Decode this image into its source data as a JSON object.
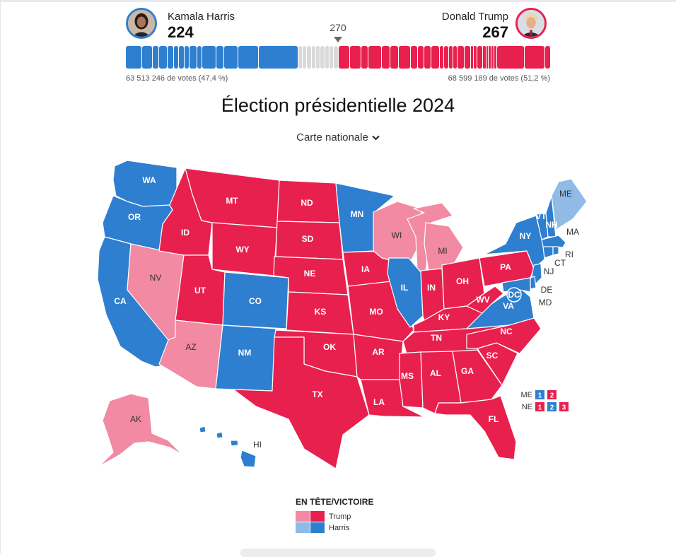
{
  "candidates": {
    "dem": {
      "name": "Kamala Harris",
      "electoral_votes": "224",
      "popular_vote": "63 513 246 de votes (47,4 %)"
    },
    "rep": {
      "name": "Donald Trump",
      "electoral_votes": "267",
      "popular_vote": "68 599 189 de votes (51,2 %)"
    }
  },
  "threshold": "270",
  "title": "Élection présidentielle 2024",
  "view_selector": {
    "label": "Carte nationale",
    "icon": "chevron-down-icon"
  },
  "colors": {
    "harris_won": "#2e7fd0",
    "harris_leading": "#8fbbe6",
    "trump_won": "#e8204e",
    "trump_leading": "#f18aa2",
    "uncalled": "#dadada"
  },
  "legend": {
    "title": "EN TÊTE/VICTOIRE",
    "trump_label": "Trump",
    "harris_label": "Harris"
  },
  "states": [
    {
      "abbr": "WA",
      "status": "harris_won"
    },
    {
      "abbr": "OR",
      "status": "harris_won"
    },
    {
      "abbr": "CA",
      "status": "harris_won"
    },
    {
      "abbr": "NV",
      "status": "trump_leading"
    },
    {
      "abbr": "ID",
      "status": "trump_won"
    },
    {
      "abbr": "MT",
      "status": "trump_won"
    },
    {
      "abbr": "WY",
      "status": "trump_won"
    },
    {
      "abbr": "UT",
      "status": "trump_won"
    },
    {
      "abbr": "AZ",
      "status": "trump_leading"
    },
    {
      "abbr": "CO",
      "status": "harris_won"
    },
    {
      "abbr": "NM",
      "status": "harris_won"
    },
    {
      "abbr": "ND",
      "status": "trump_won"
    },
    {
      "abbr": "SD",
      "status": "trump_won"
    },
    {
      "abbr": "NE",
      "status": "trump_won"
    },
    {
      "abbr": "KS",
      "status": "trump_won"
    },
    {
      "abbr": "OK",
      "status": "trump_won"
    },
    {
      "abbr": "TX",
      "status": "trump_won"
    },
    {
      "abbr": "MN",
      "status": "harris_won"
    },
    {
      "abbr": "IA",
      "status": "trump_won"
    },
    {
      "abbr": "MO",
      "status": "trump_won"
    },
    {
      "abbr": "AR",
      "status": "trump_won"
    },
    {
      "abbr": "LA",
      "status": "trump_won"
    },
    {
      "abbr": "WI",
      "status": "trump_leading"
    },
    {
      "abbr": "MI",
      "status": "trump_leading"
    },
    {
      "abbr": "IL",
      "status": "harris_won"
    },
    {
      "abbr": "IN",
      "status": "trump_won"
    },
    {
      "abbr": "OH",
      "status": "trump_won"
    },
    {
      "abbr": "KY",
      "status": "trump_won"
    },
    {
      "abbr": "TN",
      "status": "trump_won"
    },
    {
      "abbr": "MS",
      "status": "trump_won"
    },
    {
      "abbr": "AL",
      "status": "trump_won"
    },
    {
      "abbr": "GA",
      "status": "trump_won"
    },
    {
      "abbr": "FL",
      "status": "trump_won"
    },
    {
      "abbr": "SC",
      "status": "trump_won"
    },
    {
      "abbr": "NC",
      "status": "trump_won"
    },
    {
      "abbr": "VA",
      "status": "harris_won"
    },
    {
      "abbr": "WV",
      "status": "trump_won"
    },
    {
      "abbr": "PA",
      "status": "trump_won"
    },
    {
      "abbr": "NY",
      "status": "harris_won"
    },
    {
      "abbr": "VT",
      "status": "harris_won"
    },
    {
      "abbr": "NH",
      "status": "harris_won"
    },
    {
      "abbr": "ME",
      "status": "harris_leading"
    },
    {
      "abbr": "MA",
      "status": "harris_won"
    },
    {
      "abbr": "RI",
      "status": "harris_won"
    },
    {
      "abbr": "CT",
      "status": "harris_won"
    },
    {
      "abbr": "NJ",
      "status": "harris_won"
    },
    {
      "abbr": "DE",
      "status": "harris_won"
    },
    {
      "abbr": "MD",
      "status": "harris_won"
    },
    {
      "abbr": "DC",
      "status": "harris_won"
    },
    {
      "abbr": "AK",
      "status": "trump_leading"
    },
    {
      "abbr": "HI",
      "status": "harris_won"
    }
  ],
  "districts": {
    "ME": {
      "label": "ME",
      "boxes": [
        {
          "n": "1",
          "status": "harris_won"
        },
        {
          "n": "2",
          "status": "trump_won"
        }
      ]
    },
    "NE": {
      "label": "NE",
      "boxes": [
        {
          "n": "1",
          "status": "trump_won"
        },
        {
          "n": "2",
          "status": "harris_won"
        },
        {
          "n": "3",
          "status": "trump_won"
        }
      ]
    }
  }
}
